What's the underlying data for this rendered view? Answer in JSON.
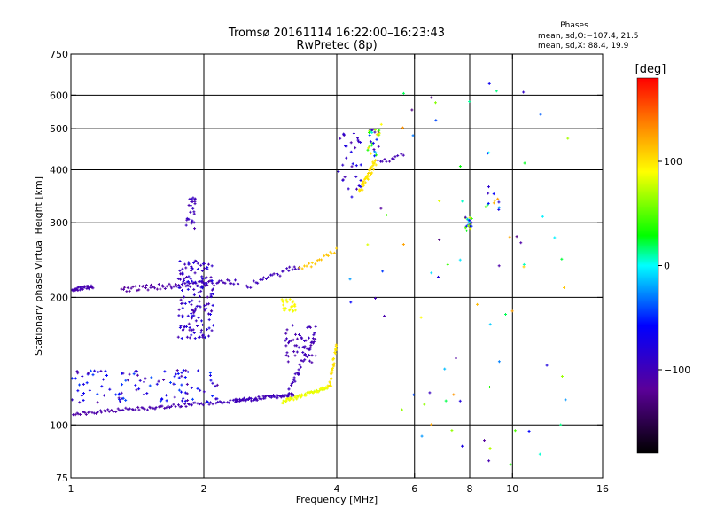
{
  "chart_data": {
    "type": "scatter",
    "title": "Tromsø 20161114 16:22:00–16:23:43",
    "subtitle": "RwPretec (8p)",
    "xlabel": "Frequency [MHz]",
    "ylabel": "Stationary phase Virtual Height [km]",
    "x_scale": "log",
    "y_scale": "log",
    "xlim": [
      1,
      16
    ],
    "ylim": [
      75,
      750
    ],
    "x_ticks": [
      1,
      2,
      4,
      6,
      8,
      10,
      16
    ],
    "x_tick_labels": [
      "1",
      "2",
      "4",
      "6",
      "8",
      "10",
      "16"
    ],
    "y_ticks": [
      75,
      100,
      200,
      300,
      400,
      500,
      600,
      750
    ],
    "y_tick_labels": [
      "75",
      "100",
      "200",
      "300",
      "400",
      "500",
      "600",
      "750"
    ],
    "x_grid": [
      2,
      4,
      6,
      8,
      10
    ],
    "y_grid": [
      100,
      200,
      300,
      400,
      500,
      600
    ],
    "annotation": {
      "heading": "Phases",
      "line1": "mean, sd,O:−107.4, 21.5",
      "line2": "mean, sd,X:  88.4, 19.9"
    },
    "colorbar": {
      "label": "[deg]",
      "range": [
        -180,
        180
      ],
      "ticks": [
        100,
        0,
        -100
      ],
      "tick_labels": [
        "100",
        "0",
        "−100"
      ]
    },
    "traces": [
      {
        "kind": "curve",
        "n": 85,
        "x0": 1.0,
        "x1": 2.35,
        "y0": 106,
        "y1": 114,
        "phase0": -112,
        "phase1": -100,
        "jitter": 2
      },
      {
        "kind": "curve",
        "n": 70,
        "x0": 2.35,
        "x1": 3.2,
        "y0": 114,
        "y1": 118,
        "phase0": -100,
        "phase1": -100,
        "jitter": 2
      },
      {
        "kind": "curve",
        "n": 60,
        "x0": 3.0,
        "x1": 3.9,
        "y0": 113,
        "y1": 124,
        "phase0": 85,
        "phase1": 85,
        "jitter": 2
      },
      {
        "kind": "curve",
        "n": 30,
        "x0": 3.85,
        "x1": 4.0,
        "y0": 124,
        "y1": 155,
        "phase0": 100,
        "phase1": 100,
        "jitter": 3
      },
      {
        "kind": "curve",
        "n": 30,
        "x0": 3.1,
        "x1": 3.55,
        "y0": 118,
        "y1": 160,
        "phase0": -100,
        "phase1": -100,
        "jitter": 4
      },
      {
        "kind": "cloud",
        "n": 50,
        "x0": 3.05,
        "x1": 3.6,
        "y0": 140,
        "y1": 172,
        "phase0": -110,
        "phase1": -95
      },
      {
        "kind": "curve",
        "n": 40,
        "x0": 1.0,
        "x1": 1.12,
        "y0": 208,
        "y1": 212,
        "phase0": -105,
        "phase1": -105,
        "jitter": 2
      },
      {
        "kind": "curve",
        "n": 70,
        "x0": 1.3,
        "x1": 2.4,
        "y0": 209,
        "y1": 218,
        "phase0": -115,
        "phase1": -100,
        "jitter": 3
      },
      {
        "kind": "cloud",
        "n": 160,
        "x0": 1.75,
        "x1": 2.1,
        "y0": 160,
        "y1": 245,
        "phase0": -110,
        "phase1": -70
      },
      {
        "kind": "cloud",
        "n": 25,
        "x0": 1.82,
        "x1": 1.92,
        "y0": 290,
        "y1": 345,
        "phase0": -110,
        "phase1": -90
      },
      {
        "kind": "curve",
        "n": 28,
        "x0": 2.5,
        "x1": 3.3,
        "y0": 212,
        "y1": 238,
        "phase0": -100,
        "phase1": -100,
        "jitter": 3
      },
      {
        "kind": "curve",
        "n": 18,
        "x0": 3.3,
        "x1": 4.0,
        "y0": 232,
        "y1": 258,
        "phase0": 110,
        "phase1": 110,
        "jitter": 3
      },
      {
        "kind": "cloud",
        "n": 25,
        "x0": 3.0,
        "x1": 3.25,
        "y0": 185,
        "y1": 198,
        "phase0": 85,
        "phase1": 95
      },
      {
        "kind": "cloud",
        "n": 110,
        "x0": 1.0,
        "x1": 2.15,
        "y0": 113,
        "y1": 135,
        "phase0": -115,
        "phase1": -40
      },
      {
        "kind": "cloud",
        "n": 30,
        "x0": 4.0,
        "x1": 4.55,
        "y0": 345,
        "y1": 490,
        "phase0": -110,
        "phase1": -70
      },
      {
        "kind": "curve",
        "n": 40,
        "x0": 4.5,
        "x1": 4.9,
        "y0": 355,
        "y1": 420,
        "phase0": 100,
        "phase1": 100,
        "jitter": 4
      },
      {
        "kind": "curve",
        "n": 12,
        "x0": 4.95,
        "x1": 5.65,
        "y0": 415,
        "y1": 435,
        "phase0": -105,
        "phase1": -105,
        "jitter": 3
      },
      {
        "kind": "cloud",
        "n": 30,
        "x0": 4.7,
        "x1": 5.0,
        "y0": 430,
        "y1": 500,
        "phase0": -110,
        "phase1": 110
      },
      {
        "kind": "cloud",
        "n": 80,
        "x0": 4.2,
        "x1": 13.5,
        "y0": 80,
        "y1": 650,
        "phase0": -130,
        "phase1": 130
      },
      {
        "kind": "cloud",
        "n": 20,
        "x0": 7.8,
        "x1": 8.1,
        "y0": 290,
        "y1": 310,
        "phase0": -100,
        "phase1": 120
      },
      {
        "kind": "cloud",
        "n": 10,
        "x0": 8.8,
        "x1": 9.4,
        "y0": 320,
        "y1": 370,
        "phase0": -100,
        "phase1": 140
      }
    ]
  }
}
